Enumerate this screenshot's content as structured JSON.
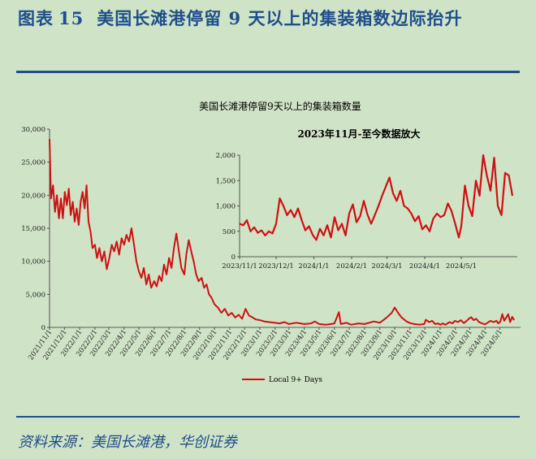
{
  "figure": {
    "label": "图表",
    "number": "15",
    "caption": "美国长滩港停留 9 天以上的集装箱数边际抬升",
    "source": "资料来源：美国长滩港，华创证券"
  },
  "colors": {
    "series": "#d10f12",
    "heading": "#1f4e8c",
    "background": "#cfe3c6"
  },
  "chart_data": [
    {
      "type": "line",
      "title": "美国长滩港停留9天以上的集装箱数量",
      "legend": {
        "position": "bottom-center",
        "entries": [
          "Local 9+ Days"
        ]
      },
      "ylim": [
        0,
        30000
      ],
      "yticks": [
        "0",
        "5,000",
        "10,000",
        "15,000",
        "20,000",
        "25,000",
        "30,000"
      ],
      "xticks": [
        "2021/11/1",
        "2021/12/1",
        "2022/1/1",
        "2022/2/1",
        "2022/3/1",
        "2022/4/1",
        "2022/5/1",
        "2022/6/1",
        "2022/7/1",
        "2022/8/1",
        "2022/9/1",
        "2022/10/1",
        "2022/11/1",
        "2022/12/1",
        "2023/1/1",
        "2023/2/1",
        "2023/3/1",
        "2023/4/1",
        "2023/5/1",
        "2023/6/1",
        "2023/7/1",
        "2023/8/1",
        "2023/9/1",
        "2023/10/1",
        "2023/11/1",
        "2023/12/1",
        "2024/1/1",
        "2024/2/1",
        "2024/3/1",
        "2024/4/1",
        "2024/5/1"
      ],
      "series": [
        {
          "name": "Local 9+ Days",
          "points": [
            [
              "2021-11-01",
              28500
            ],
            [
              "2021-11-04",
              19500
            ],
            [
              "2021-11-08",
              21500
            ],
            [
              "2021-11-12",
              17500
            ],
            [
              "2021-11-16",
              20000
            ],
            [
              "2021-11-20",
              16500
            ],
            [
              "2021-11-24",
              19500
            ],
            [
              "2021-11-28",
              16500
            ],
            [
              "2021-12-02",
              20500
            ],
            [
              "2021-12-06",
              18500
            ],
            [
              "2021-12-10",
              21000
            ],
            [
              "2021-12-14",
              17000
            ],
            [
              "2021-12-18",
              19000
            ],
            [
              "2021-12-22",
              16000
            ],
            [
              "2021-12-26",
              18000
            ],
            [
              "2021-12-30",
              15500
            ],
            [
              "2022-01-03",
              19000
            ],
            [
              "2022-01-07",
              20500
            ],
            [
              "2022-01-11",
              18000
            ],
            [
              "2022-01-15",
              21500
            ],
            [
              "2022-01-19",
              16000
            ],
            [
              "2022-01-23",
              14500
            ],
            [
              "2022-01-27",
              12000
            ],
            [
              "2022-02-01",
              12500
            ],
            [
              "2022-02-05",
              10500
            ],
            [
              "2022-02-10",
              12000
            ],
            [
              "2022-02-15",
              10000
            ],
            [
              "2022-02-20",
              11500
            ],
            [
              "2022-02-25",
              8800
            ],
            [
              "2022-03-02",
              10500
            ],
            [
              "2022-03-07",
              12500
            ],
            [
              "2022-03-12",
              11500
            ],
            [
              "2022-03-17",
              13000
            ],
            [
              "2022-03-22",
              11000
            ],
            [
              "2022-03-27",
              13500
            ],
            [
              "2022-04-01",
              12500
            ],
            [
              "2022-04-06",
              14000
            ],
            [
              "2022-04-11",
              13000
            ],
            [
              "2022-04-16",
              15000
            ],
            [
              "2022-04-21",
              12500
            ],
            [
              "2022-04-26",
              10000
            ],
            [
              "2022-05-01",
              8500
            ],
            [
              "2022-05-06",
              7500
            ],
            [
              "2022-05-11",
              9000
            ],
            [
              "2022-05-16",
              6500
            ],
            [
              "2022-05-21",
              8000
            ],
            [
              "2022-05-26",
              6000
            ],
            [
              "2022-06-01",
              7000
            ],
            [
              "2022-06-06",
              6200
            ],
            [
              "2022-06-11",
              7800
            ],
            [
              "2022-06-16",
              7000
            ],
            [
              "2022-06-21",
              9500
            ],
            [
              "2022-06-26",
              8000
            ],
            [
              "2022-07-01",
              10500
            ],
            [
              "2022-07-06",
              9000
            ],
            [
              "2022-07-11",
              12000
            ],
            [
              "2022-07-16",
              14200
            ],
            [
              "2022-07-21",
              11500
            ],
            [
              "2022-07-26",
              9000
            ],
            [
              "2022-08-01",
              8000
            ],
            [
              "2022-08-05",
              11000
            ],
            [
              "2022-08-10",
              13200
            ],
            [
              "2022-08-15",
              11500
            ],
            [
              "2022-08-20",
              10000
            ],
            [
              "2022-08-25",
              8000
            ],
            [
              "2022-08-30",
              7000
            ],
            [
              "2022-09-05",
              7500
            ],
            [
              "2022-09-10",
              6000
            ],
            [
              "2022-09-15",
              6500
            ],
            [
              "2022-09-20",
              5000
            ],
            [
              "2022-09-25",
              4500
            ],
            [
              "2022-10-01",
              3500
            ],
            [
              "2022-10-08",
              3000
            ],
            [
              "2022-10-15",
              2200
            ],
            [
              "2022-10-22",
              2800
            ],
            [
              "2022-10-29",
              1800
            ],
            [
              "2022-11-05",
              2200
            ],
            [
              "2022-11-12",
              1500
            ],
            [
              "2022-11-19",
              1900
            ],
            [
              "2022-11-26",
              1300
            ],
            [
              "2022-12-03",
              2800
            ],
            [
              "2022-12-10",
              1800
            ],
            [
              "2022-12-17",
              1500
            ],
            [
              "2022-12-24",
              1200
            ],
            [
              "2023-01-01",
              1100
            ],
            [
              "2023-01-10",
              900
            ],
            [
              "2023-01-20",
              800
            ],
            [
              "2023-01-31",
              700
            ],
            [
              "2023-02-10",
              600
            ],
            [
              "2023-02-20",
              800
            ],
            [
              "2023-03-01",
              500
            ],
            [
              "2023-03-15",
              700
            ],
            [
              "2023-04-01",
              500
            ],
            [
              "2023-04-15",
              600
            ],
            [
              "2023-04-22",
              900
            ],
            [
              "2023-05-01",
              500
            ],
            [
              "2023-05-15",
              400
            ],
            [
              "2023-06-01",
              600
            ],
            [
              "2023-06-10",
              2300
            ],
            [
              "2023-06-14",
              500
            ],
            [
              "2023-06-25",
              700
            ],
            [
              "2023-07-05",
              400
            ],
            [
              "2023-07-20",
              600
            ],
            [
              "2023-08-01",
              500
            ],
            [
              "2023-08-20",
              900
            ],
            [
              "2023-09-01",
              700
            ],
            [
              "2023-09-15",
              1500
            ],
            [
              "2023-09-25",
              2200
            ],
            [
              "2023-10-01",
              3000
            ],
            [
              "2023-10-08",
              2200
            ],
            [
              "2023-10-15",
              1500
            ],
            [
              "2023-10-25",
              900
            ],
            [
              "2023-11-01",
              650
            ],
            [
              "2023-11-10",
              500
            ],
            [
              "2023-11-20",
              420
            ],
            [
              "2023-11-30",
              500
            ],
            [
              "2023-12-03",
              1150
            ],
            [
              "2023-12-10",
              800
            ],
            [
              "2023-12-16",
              1000
            ],
            [
              "2023-12-22",
              500
            ],
            [
              "2023-12-28",
              600
            ],
            [
              "2024-01-02",
              400
            ],
            [
              "2024-01-06",
              600
            ],
            [
              "2024-01-12",
              400
            ],
            [
              "2024-01-20",
              800
            ],
            [
              "2024-01-26",
              600
            ],
            [
              "2024-01-31",
              1000
            ],
            [
              "2024-02-06",
              800
            ],
            [
              "2024-02-12",
              1100
            ],
            [
              "2024-02-18",
              650
            ],
            [
              "2024-02-24",
              1000
            ],
            [
              "2024-02-28",
              1300
            ],
            [
              "2024-03-04",
              1550
            ],
            [
              "2024-03-09",
              1100
            ],
            [
              "2024-03-14",
              1300
            ],
            [
              "2024-03-20",
              800
            ],
            [
              "2024-03-26",
              600
            ],
            [
              "2024-04-01",
              450
            ],
            [
              "2024-04-06",
              700
            ],
            [
              "2024-04-12",
              1000
            ],
            [
              "2024-04-18",
              800
            ],
            [
              "2024-04-24",
              1000
            ],
            [
              "2024-04-28",
              600
            ],
            [
              "2024-05-02",
              900
            ],
            [
              "2024-05-06",
              2000
            ],
            [
              "2024-05-10",
              1000
            ],
            [
              "2024-05-14",
              1500
            ],
            [
              "2024-05-18",
              2000
            ],
            [
              "2024-05-22",
              800
            ],
            [
              "2024-05-26",
              1600
            ],
            [
              "2024-05-30",
              1100
            ]
          ]
        }
      ]
    },
    {
      "type": "line",
      "title": "2023年11月-至今数据放大",
      "ylim": [
        0,
        2000
      ],
      "yticks": [
        "0",
        "500",
        "1,000",
        "1,500",
        "2,000"
      ],
      "xticks": [
        "2023/11/1",
        "2023/12/1",
        "2024/1/1",
        "2024/2/1",
        "2024/3/1",
        "2024/4/1",
        "2024/5/1"
      ],
      "series": [
        {
          "name": "Local 9+ Days",
          "points": [
            [
              "2023-11-01",
              650
            ],
            [
              "2023-11-04",
              620
            ],
            [
              "2023-11-07",
              720
            ],
            [
              "2023-11-10",
              500
            ],
            [
              "2023-11-13",
              580
            ],
            [
              "2023-11-16",
              470
            ],
            [
              "2023-11-19",
              520
            ],
            [
              "2023-11-22",
              420
            ],
            [
              "2023-11-25",
              500
            ],
            [
              "2023-11-28",
              460
            ],
            [
              "2023-12-01",
              650
            ],
            [
              "2023-12-04",
              1150
            ],
            [
              "2023-12-07",
              1000
            ],
            [
              "2023-12-10",
              820
            ],
            [
              "2023-12-13",
              920
            ],
            [
              "2023-12-16",
              780
            ],
            [
              "2023-12-19",
              950
            ],
            [
              "2023-12-22",
              720
            ],
            [
              "2023-12-25",
              520
            ],
            [
              "2023-12-28",
              600
            ],
            [
              "2023-12-31",
              430
            ],
            [
              "2024-01-03",
              330
            ],
            [
              "2024-01-06",
              550
            ],
            [
              "2024-01-09",
              420
            ],
            [
              "2024-01-12",
              620
            ],
            [
              "2024-01-15",
              380
            ],
            [
              "2024-01-18",
              780
            ],
            [
              "2024-01-21",
              520
            ],
            [
              "2024-01-24",
              650
            ],
            [
              "2024-01-27",
              420
            ],
            [
              "2024-01-30",
              850
            ],
            [
              "2024-02-02",
              1030
            ],
            [
              "2024-02-05",
              680
            ],
            [
              "2024-02-08",
              800
            ],
            [
              "2024-02-11",
              1100
            ],
            [
              "2024-02-14",
              830
            ],
            [
              "2024-02-17",
              650
            ],
            [
              "2024-02-20",
              820
            ],
            [
              "2024-02-23",
              1000
            ],
            [
              "2024-02-26",
              1200
            ],
            [
              "2024-02-29",
              1380
            ],
            [
              "2024-03-03",
              1560
            ],
            [
              "2024-03-06",
              1250
            ],
            [
              "2024-03-09",
              1100
            ],
            [
              "2024-03-12",
              1300
            ],
            [
              "2024-03-15",
              1000
            ],
            [
              "2024-03-18",
              950
            ],
            [
              "2024-03-21",
              850
            ],
            [
              "2024-03-24",
              700
            ],
            [
              "2024-03-27",
              800
            ],
            [
              "2024-03-30",
              540
            ],
            [
              "2024-04-02",
              620
            ],
            [
              "2024-04-05",
              500
            ],
            [
              "2024-04-08",
              750
            ],
            [
              "2024-04-11",
              850
            ],
            [
              "2024-04-14",
              780
            ],
            [
              "2024-04-17",
              820
            ],
            [
              "2024-04-20",
              1050
            ],
            [
              "2024-04-23",
              900
            ],
            [
              "2024-04-26",
              650
            ],
            [
              "2024-04-29",
              380
            ],
            [
              "2024-05-01",
              600
            ],
            [
              "2024-05-04",
              1400
            ],
            [
              "2024-05-07",
              1000
            ],
            [
              "2024-05-10",
              800
            ],
            [
              "2024-05-13",
              1500
            ],
            [
              "2024-05-16",
              1200
            ],
            [
              "2024-05-19",
              2000
            ],
            [
              "2024-05-22",
              1600
            ],
            [
              "2024-05-25",
              1300
            ],
            [
              "2024-05-28",
              1950
            ],
            [
              "2024-05-31",
              1000
            ],
            [
              "2024-06-03",
              820
            ],
            [
              "2024-06-06",
              1650
            ],
            [
              "2024-06-09",
              1600
            ],
            [
              "2024-06-12",
              1200
            ]
          ]
        }
      ]
    }
  ]
}
